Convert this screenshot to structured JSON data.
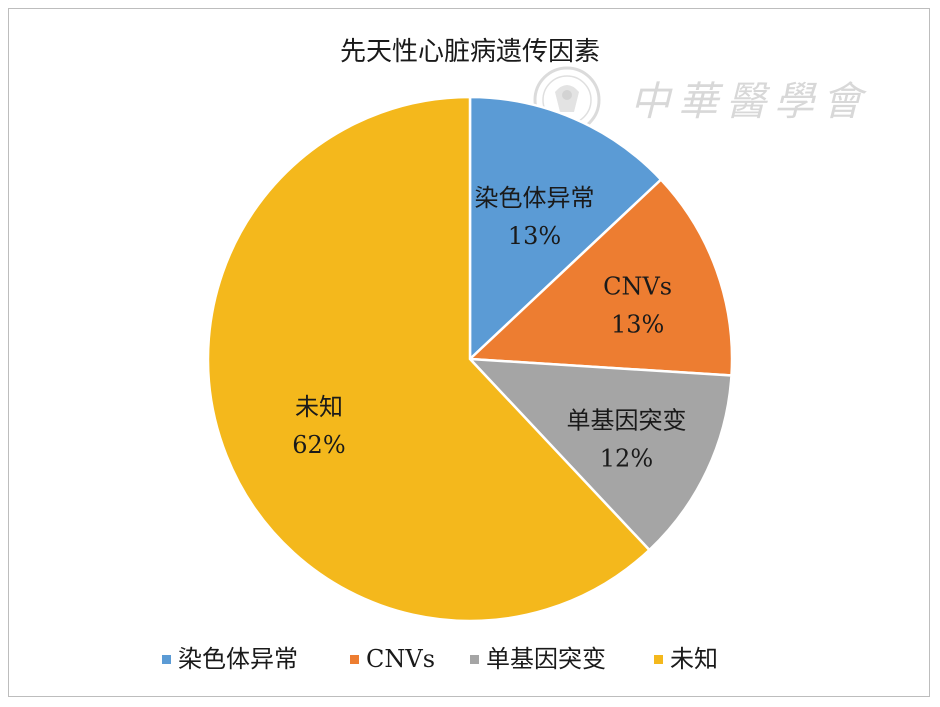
{
  "chart_data": {
    "type": "pie",
    "title": "先天性心脏病遗传因素",
    "categories": [
      "染色体异常",
      "CNVs",
      "单基因突变",
      "未知"
    ],
    "values": [
      13,
      13,
      12,
      62
    ],
    "data_labels": [
      "13%",
      "13%",
      "12%",
      "62%"
    ],
    "colors": [
      "#5b9bd5",
      "#ed7d31",
      "#a5a5a5",
      "#f4b81c"
    ],
    "legend_position": "bottom"
  },
  "watermark": {
    "text": "中華醫學會",
    "seal": "seal-logo"
  }
}
